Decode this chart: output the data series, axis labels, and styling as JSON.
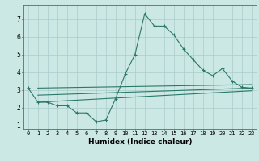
{
  "x": [
    0,
    1,
    2,
    3,
    4,
    5,
    6,
    7,
    8,
    9,
    10,
    11,
    12,
    13,
    14,
    15,
    16,
    17,
    18,
    19,
    20,
    21,
    22,
    23
  ],
  "line1": [
    3.1,
    2.3,
    2.3,
    2.1,
    2.1,
    1.7,
    1.7,
    1.2,
    1.3,
    2.5,
    3.9,
    5.0,
    7.3,
    6.6,
    6.6,
    6.1,
    5.3,
    4.7,
    4.1,
    3.8,
    4.2,
    3.5,
    3.15,
    3.1
  ],
  "line2": [
    [
      1,
      3.1
    ],
    [
      23,
      3.3
    ]
  ],
  "line3": [
    [
      1,
      2.7
    ],
    [
      23,
      3.1
    ]
  ],
  "line4": [
    [
      1,
      2.3
    ],
    [
      23,
      2.95
    ]
  ],
  "color": "#2a7868",
  "bg_color": "#cce8e4",
  "grid_color": "#aacccc",
  "xlabel": "Humidex (Indice chaleur)",
  "xlim": [
    -0.5,
    23.5
  ],
  "ylim": [
    0.8,
    7.8
  ],
  "yticks": [
    1,
    2,
    3,
    4,
    5,
    6,
    7
  ],
  "xticks": [
    0,
    1,
    2,
    3,
    4,
    5,
    6,
    7,
    8,
    9,
    10,
    11,
    12,
    13,
    14,
    15,
    16,
    17,
    18,
    19,
    20,
    21,
    22,
    23
  ],
  "tick_fontsize": 5.0,
  "xlabel_fontsize": 6.5
}
